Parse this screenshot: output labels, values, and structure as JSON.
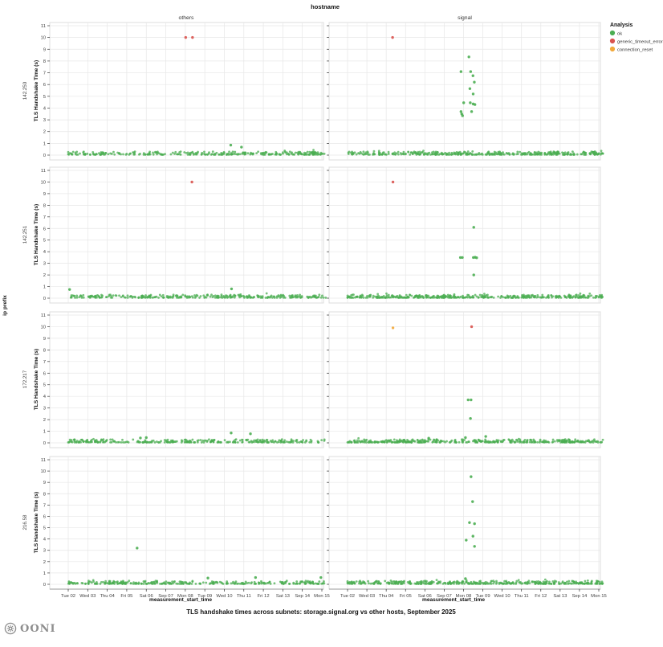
{
  "chart_data": {
    "type": "scatter",
    "title": "TLS handshake times across subnets: storage.signal.org vs other hosts, September 2025",
    "facet_col_title": "hostname",
    "facet_row_title": "ip prefix",
    "col_facets": [
      "others",
      "signal"
    ],
    "row_facets": [
      "142.250",
      "142.251",
      "172.217",
      "216.58"
    ],
    "xlabel": "measurement_start_time",
    "ylabel": "TLS Handshake Time (s)",
    "x_ticks": [
      "Tue 02",
      "Wed 03",
      "Thu 04",
      "Fri 05",
      "Sat 06",
      "Sep 07",
      "Mon 08",
      "Tue 09",
      "Wed 10",
      "Thu 11",
      "Fri 12",
      "Sat 13",
      "Sep 14",
      "Mon 15"
    ],
    "y_ticks": [
      0,
      1,
      2,
      3,
      4,
      5,
      6,
      7,
      8,
      9,
      10,
      11
    ],
    "ylim": [
      0,
      11
    ],
    "grid": true,
    "legend": {
      "title": "Analysis",
      "position": "right",
      "entries": [
        {
          "label": "ok",
          "color": "#4bae52"
        },
        {
          "label": "generic_timeout_error",
          "color": "#d9534f"
        },
        {
          "label": "connection_reset",
          "color": "#f2a93b"
        }
      ]
    },
    "baseline_note": "dense band of ok measurements between ~0.04s and ~0.3s across all days in every panel",
    "panels": [
      {
        "row": "142.250",
        "col": "others",
        "baseline": {
          "count": 300,
          "y_min": 0.04,
          "y_max": 0.3
        },
        "points": [
          {
            "x": 6.02,
            "y": 10,
            "analysis": "generic_timeout_error"
          },
          {
            "x": 6.37,
            "y": 10,
            "analysis": "generic_timeout_error"
          },
          {
            "x": 8.33,
            "y": 0.85,
            "analysis": "ok"
          },
          {
            "x": 8.88,
            "y": 0.68,
            "analysis": "ok"
          }
        ]
      },
      {
        "row": "142.250",
        "col": "signal",
        "baseline": {
          "count": 400,
          "y_min": 0.04,
          "y_max": 0.3
        },
        "points": [
          {
            "x": 2.33,
            "y": 10,
            "analysis": "generic_timeout_error"
          },
          {
            "x": 6.28,
            "y": 8.35,
            "analysis": "ok"
          },
          {
            "x": 5.87,
            "y": 7.1,
            "analysis": "ok"
          },
          {
            "x": 6.37,
            "y": 7.1,
            "analysis": "ok"
          },
          {
            "x": 6.49,
            "y": 6.75,
            "analysis": "ok"
          },
          {
            "x": 6.56,
            "y": 6.2,
            "analysis": "ok"
          },
          {
            "x": 6.33,
            "y": 5.65,
            "analysis": "ok"
          },
          {
            "x": 6.5,
            "y": 5.2,
            "analysis": "ok"
          },
          {
            "x": 6.35,
            "y": 4.45,
            "analysis": "ok"
          },
          {
            "x": 6.5,
            "y": 4.35,
            "analysis": "ok"
          },
          {
            "x": 6.59,
            "y": 4.3,
            "analysis": "ok"
          },
          {
            "x": 6.01,
            "y": 4.45,
            "analysis": "ok"
          },
          {
            "x": 5.87,
            "y": 3.7,
            "analysis": "ok"
          },
          {
            "x": 6.42,
            "y": 3.7,
            "analysis": "ok"
          },
          {
            "x": 5.91,
            "y": 3.5,
            "analysis": "ok"
          },
          {
            "x": 5.95,
            "y": 3.35,
            "analysis": "ok"
          }
        ]
      },
      {
        "row": "142.251",
        "col": "others",
        "baseline": {
          "count": 300,
          "y_min": 0.04,
          "y_max": 0.3
        },
        "points": [
          {
            "x": 6.34,
            "y": 10,
            "analysis": "generic_timeout_error"
          },
          {
            "x": 0.07,
            "y": 0.75,
            "analysis": "ok"
          },
          {
            "x": 8.37,
            "y": 0.8,
            "analysis": "ok"
          }
        ]
      },
      {
        "row": "142.251",
        "col": "signal",
        "baseline": {
          "count": 400,
          "y_min": 0.04,
          "y_max": 0.3
        },
        "points": [
          {
            "x": 2.35,
            "y": 10,
            "analysis": "generic_timeout_error"
          },
          {
            "x": 6.53,
            "y": 6.1,
            "analysis": "ok"
          },
          {
            "x": 5.84,
            "y": 3.5,
            "analysis": "ok"
          },
          {
            "x": 5.94,
            "y": 3.5,
            "analysis": "ok"
          },
          {
            "x": 6.51,
            "y": 3.5,
            "analysis": "ok"
          },
          {
            "x": 6.6,
            "y": 3.52,
            "analysis": "ok"
          },
          {
            "x": 6.68,
            "y": 3.48,
            "analysis": "ok"
          },
          {
            "x": 6.53,
            "y": 2.0,
            "analysis": "ok"
          }
        ]
      },
      {
        "row": "172.217",
        "col": "others",
        "baseline": {
          "count": 300,
          "y_min": 0.04,
          "y_max": 0.3
        },
        "points": [
          {
            "x": 8.35,
            "y": 0.85,
            "analysis": "ok"
          },
          {
            "x": 9.34,
            "y": 0.78,
            "analysis": "ok"
          },
          {
            "x": 3.7,
            "y": 0.42,
            "analysis": "ok"
          },
          {
            "x": 4.0,
            "y": 0.45,
            "analysis": "ok"
          }
        ]
      },
      {
        "row": "172.217",
        "col": "signal",
        "baseline": {
          "count": 400,
          "y_min": 0.04,
          "y_max": 0.3
        },
        "points": [
          {
            "x": 2.35,
            "y": 9.9,
            "analysis": "connection_reset"
          },
          {
            "x": 6.42,
            "y": 10,
            "analysis": "generic_timeout_error"
          },
          {
            "x": 6.24,
            "y": 3.7,
            "analysis": "ok"
          },
          {
            "x": 6.39,
            "y": 3.7,
            "analysis": "ok"
          },
          {
            "x": 6.36,
            "y": 2.1,
            "analysis": "ok"
          },
          {
            "x": 7.15,
            "y": 0.55,
            "analysis": "ok"
          },
          {
            "x": 6.1,
            "y": 0.45,
            "analysis": "ok"
          },
          {
            "x": 4.2,
            "y": 0.4,
            "analysis": "ok"
          }
        ]
      },
      {
        "row": "216.58",
        "col": "others",
        "baseline": {
          "count": 300,
          "y_min": 0.04,
          "y_max": 0.3
        },
        "points": [
          {
            "x": 3.53,
            "y": 3.2,
            "analysis": "ok"
          },
          {
            "x": 7.16,
            "y": 0.55,
            "analysis": "ok"
          },
          {
            "x": 9.6,
            "y": 0.6,
            "analysis": "ok"
          },
          {
            "x": 12.95,
            "y": 0.6,
            "analysis": "ok"
          }
        ]
      },
      {
        "row": "216.58",
        "col": "signal",
        "baseline": {
          "count": 400,
          "y_min": 0.04,
          "y_max": 0.3
        },
        "points": [
          {
            "x": 6.39,
            "y": 9.5,
            "analysis": "ok"
          },
          {
            "x": 6.47,
            "y": 7.3,
            "analysis": "ok"
          },
          {
            "x": 6.31,
            "y": 5.45,
            "analysis": "ok"
          },
          {
            "x": 6.57,
            "y": 5.35,
            "analysis": "ok"
          },
          {
            "x": 6.49,
            "y": 4.25,
            "analysis": "ok"
          },
          {
            "x": 6.14,
            "y": 3.9,
            "analysis": "ok"
          },
          {
            "x": 6.57,
            "y": 3.35,
            "analysis": "ok"
          },
          {
            "x": 6.1,
            "y": 0.5,
            "analysis": "ok"
          }
        ]
      }
    ]
  },
  "footer": {
    "logo_text": "OONI"
  }
}
